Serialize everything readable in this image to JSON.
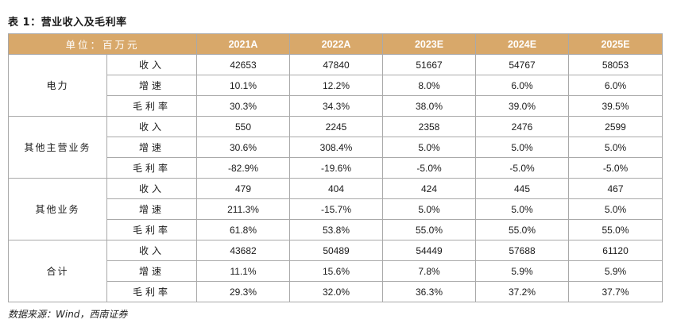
{
  "caption": "表 1：营业收入及毛利率",
  "header": {
    "unit_label": "单位：百万元",
    "years": [
      "2021A",
      "2022A",
      "2023E",
      "2024E",
      "2025E"
    ]
  },
  "segments": [
    {
      "name": "电力",
      "rows": [
        {
          "metric": "收入",
          "values": [
            "42653",
            "47840",
            "51667",
            "54767",
            "58053"
          ]
        },
        {
          "metric": "增速",
          "values": [
            "10.1%",
            "12.2%",
            "8.0%",
            "6.0%",
            "6.0%"
          ]
        },
        {
          "metric": "毛利率",
          "values": [
            "30.3%",
            "34.3%",
            "38.0%",
            "39.0%",
            "39.5%"
          ]
        }
      ]
    },
    {
      "name": "其他主营业务",
      "rows": [
        {
          "metric": "收入",
          "values": [
            "550",
            "2245",
            "2358",
            "2476",
            "2599"
          ]
        },
        {
          "metric": "增速",
          "values": [
            "30.6%",
            "308.4%",
            "5.0%",
            "5.0%",
            "5.0%"
          ]
        },
        {
          "metric": "毛利率",
          "values": [
            "-82.9%",
            "-19.6%",
            "-5.0%",
            "-5.0%",
            "-5.0%"
          ]
        }
      ]
    },
    {
      "name": "其他业务",
      "rows": [
        {
          "metric": "收入",
          "values": [
            "479",
            "404",
            "424",
            "445",
            "467"
          ]
        },
        {
          "metric": "增速",
          "values": [
            "211.3%",
            "-15.7%",
            "5.0%",
            "5.0%",
            "5.0%"
          ]
        },
        {
          "metric": "毛利率",
          "values": [
            "61.8%",
            "53.8%",
            "55.0%",
            "55.0%",
            "55.0%"
          ]
        }
      ]
    },
    {
      "name": "合计",
      "rows": [
        {
          "metric": "收入",
          "values": [
            "43682",
            "50489",
            "54449",
            "57688",
            "61120"
          ]
        },
        {
          "metric": "增速",
          "values": [
            "11.1%",
            "15.6%",
            "7.8%",
            "5.9%",
            "5.9%"
          ]
        },
        {
          "metric": "毛利率",
          "values": [
            "29.3%",
            "32.0%",
            "36.3%",
            "37.2%",
            "37.7%"
          ]
        }
      ]
    }
  ],
  "source": "数据来源：Wind，西南证券",
  "colors": {
    "header_bg": "#d8a86a",
    "header_text": "#ffffff",
    "border": "#a9a9a9"
  }
}
